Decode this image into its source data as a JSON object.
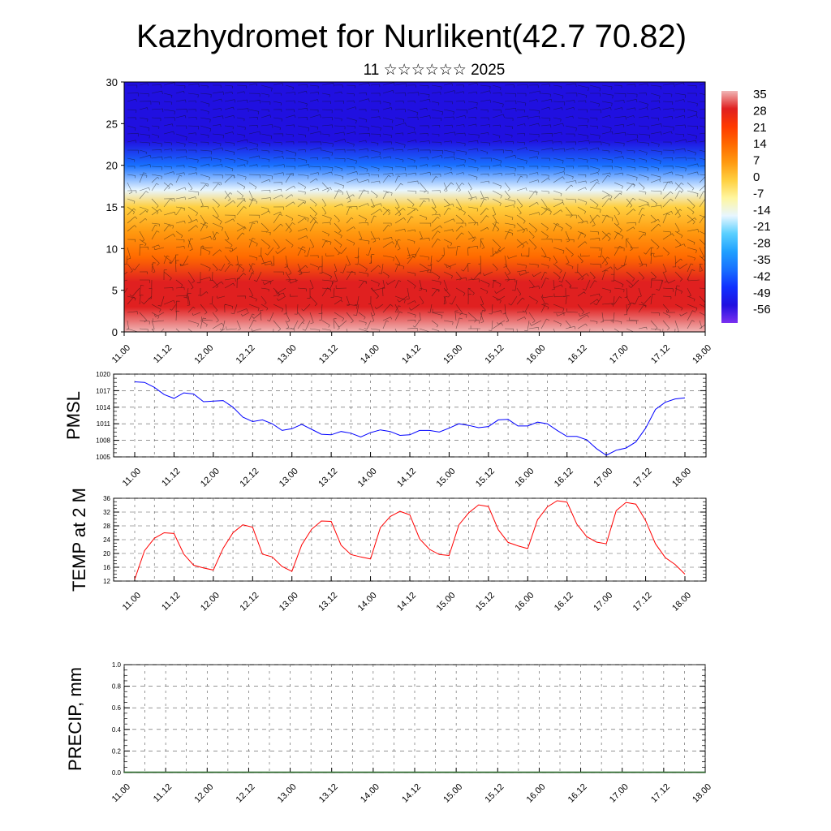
{
  "title": "Kazhydromet for Nurlikent(42.7 70.82)",
  "subtitle": "11 ☆☆☆☆☆☆ 2025",
  "time_ticks": [
    "11.00",
    "11.12",
    "12.00",
    "12.12",
    "13.00",
    "13.12",
    "14.00",
    "14.12",
    "15.00",
    "15.12",
    "16.00",
    "16.12",
    "17.00",
    "17.12",
    "18.00"
  ],
  "chart_data": [
    {
      "type": "heatmap",
      "name": "cross-section",
      "ylim": [
        0,
        30
      ],
      "yticks": [
        "0",
        "5",
        "10",
        "15",
        "20",
        "25",
        "30"
      ],
      "colorbar": {
        "labels": [
          "35",
          "28",
          "21",
          "14",
          "7",
          "0",
          "-7",
          "-14",
          "-21",
          "-28",
          "-35",
          "-42",
          "-49",
          "-56"
        ],
        "colors": [
          "#f0b6b6",
          "#e02020",
          "#ff3a00",
          "#ff6a00",
          "#ff9a10",
          "#ffd040",
          "#fff6a0",
          "#e8f6ff",
          "#5ad0ff",
          "#20a0ff",
          "#1870ff",
          "#1030ff",
          "#2010e0",
          "#7a30f0"
        ]
      },
      "temperature_profile": [
        {
          "y": 0,
          "t": 34
        },
        {
          "y": 3,
          "t": 28
        },
        {
          "y": 6,
          "t": 22
        },
        {
          "y": 9,
          "t": 14
        },
        {
          "y": 12,
          "t": 6
        },
        {
          "y": 15,
          "t": -5
        },
        {
          "y": 17,
          "t": -18
        },
        {
          "y": 20,
          "t": -38
        },
        {
          "y": 23,
          "t": -54
        },
        {
          "y": 26,
          "t": -58
        },
        {
          "y": 30,
          "t": -62
        }
      ]
    },
    {
      "type": "line",
      "ylabel": "PMSL",
      "ylim": [
        1005,
        1020
      ],
      "yticks": [
        "1005",
        "1008",
        "1011",
        "1014",
        "1017",
        "1020"
      ],
      "color": "#0000ff",
      "x": [
        0,
        3,
        6,
        9,
        12,
        15,
        18,
        21,
        24,
        27,
        30,
        33,
        36,
        39,
        42,
        45,
        48,
        51,
        54,
        57,
        60,
        63,
        66,
        69,
        72,
        75,
        78,
        81,
        84,
        87,
        90,
        93,
        96,
        99,
        102,
        105,
        108,
        111,
        114,
        117,
        120,
        123,
        126,
        129,
        132,
        135,
        138,
        141,
        144,
        147,
        150,
        153,
        156,
        159,
        162,
        165,
        168
      ],
      "values": [
        1018.6,
        1018.5,
        1017.6,
        1016.3,
        1015.6,
        1016.6,
        1016.4,
        1015.0,
        1015.1,
        1015.2,
        1014.0,
        1012.2,
        1011.4,
        1011.7,
        1011.0,
        1009.8,
        1010.1,
        1010.9,
        1010.0,
        1009.1,
        1009.0,
        1009.6,
        1009.3,
        1008.6,
        1009.4,
        1009.9,
        1009.6,
        1008.9,
        1009.0,
        1009.8,
        1009.8,
        1009.5,
        1010.2,
        1011.0,
        1010.7,
        1010.3,
        1010.5,
        1011.7,
        1011.8,
        1010.6,
        1010.6,
        1011.3,
        1011.0,
        1009.8,
        1008.7,
        1008.7,
        1008.1,
        1006.5,
        1005.3,
        1006.2,
        1006.6,
        1007.7,
        1010.2,
        1013.6,
        1014.9,
        1015.5,
        1015.7
      ]
    },
    {
      "type": "line",
      "ylabel": "TEMP at 2 M",
      "ylim": [
        12,
        36
      ],
      "yticks": [
        "12",
        "16",
        "20",
        "24",
        "28",
        "32",
        "36"
      ],
      "color": "#ff0000",
      "x": [
        0,
        3,
        6,
        9,
        12,
        15,
        18,
        21,
        24,
        27,
        30,
        33,
        36,
        39,
        42,
        45,
        48,
        51,
        54,
        57,
        60,
        63,
        66,
        69,
        72,
        75,
        78,
        81,
        84,
        87,
        90,
        93,
        96,
        99,
        102,
        105,
        108,
        111,
        114,
        117,
        120,
        123,
        126,
        129,
        132,
        135,
        138,
        141,
        144,
        147,
        150,
        153,
        156,
        159,
        162,
        165,
        168
      ],
      "values": [
        12.5,
        20.8,
        24.4,
        26.0,
        25.8,
        19.8,
        16.6,
        15.8,
        15.2,
        21.5,
        26.0,
        28.3,
        27.6,
        19.8,
        19.0,
        16.2,
        14.8,
        22.5,
        27.0,
        29.4,
        29.3,
        22.4,
        19.7,
        19.0,
        18.4,
        27.5,
        30.7,
        32.2,
        31.2,
        24.2,
        21.2,
        19.7,
        19.4,
        28.3,
        31.8,
        34.1,
        33.6,
        26.9,
        23.2,
        22.2,
        21.4,
        29.8,
        33.5,
        35.3,
        34.9,
        28.5,
        24.9,
        23.3,
        22.8,
        32.4,
        34.8,
        34.3,
        29.5,
        22.8,
        18.8,
        16.8,
        14.0
      ]
    },
    {
      "type": "bar",
      "ylabel": "PRECIP, mm",
      "ylim": [
        0,
        1.0
      ],
      "yticks": [
        "0.0",
        "0.2",
        "0.4",
        "0.6",
        "0.8",
        "1.0"
      ],
      "values": [
        0,
        0,
        0,
        0,
        0,
        0,
        0,
        0,
        0,
        0,
        0,
        0,
        0,
        0,
        0,
        0,
        0,
        0,
        0,
        0,
        0,
        0,
        0,
        0,
        0,
        0,
        0,
        0,
        0,
        0,
        0,
        0,
        0,
        0,
        0,
        0,
        0,
        0,
        0,
        0,
        0,
        0,
        0,
        0,
        0,
        0,
        0,
        0,
        0,
        0,
        0,
        0,
        0,
        0,
        0,
        0,
        0
      ]
    }
  ]
}
